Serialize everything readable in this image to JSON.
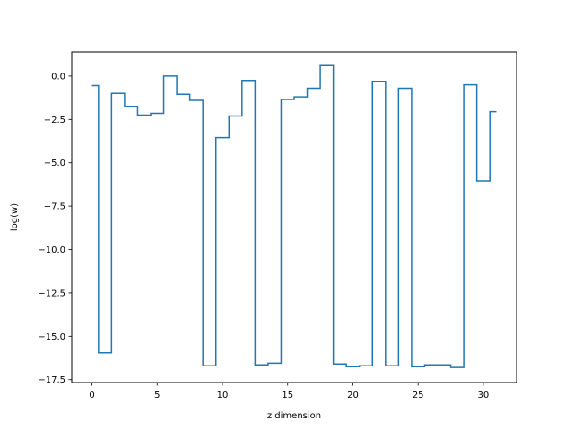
{
  "chart_data": {
    "type": "line",
    "drawstyle": "steps-mid",
    "title": "",
    "xlabel": "z dimension",
    "ylabel": "log(w)",
    "xlim": [
      -1.55,
      32.55
    ],
    "ylim": [
      -17.67,
      1.39
    ],
    "grid": false,
    "legend": "none",
    "x_ticks": [
      {
        "value": 0,
        "label": "0"
      },
      {
        "value": 5,
        "label": "5"
      },
      {
        "value": 10,
        "label": "10"
      },
      {
        "value": 15,
        "label": "15"
      },
      {
        "value": 20,
        "label": "20"
      },
      {
        "value": 25,
        "label": "25"
      },
      {
        "value": 30,
        "label": "30"
      }
    ],
    "y_ticks": [
      {
        "value": 0.0,
        "label": "0.0"
      },
      {
        "value": -2.5,
        "label": "−2.5"
      },
      {
        "value": -5.0,
        "label": "−5.0"
      },
      {
        "value": -7.5,
        "label": "−7.5"
      },
      {
        "value": -10.0,
        "label": "−10.0"
      },
      {
        "value": -12.5,
        "label": "−12.5"
      },
      {
        "value": -15.0,
        "label": "−15.0"
      },
      {
        "value": -17.5,
        "label": "−17.5"
      }
    ],
    "series": [
      {
        "color": "#1f77b4",
        "x": [
          0,
          1,
          2,
          3,
          4,
          5,
          6,
          7,
          8,
          9,
          10,
          11,
          12,
          13,
          14,
          15,
          16,
          17,
          18,
          19,
          20,
          21,
          22,
          23,
          24,
          25,
          26,
          27,
          28,
          29,
          30,
          31
        ],
        "y": [
          -0.55,
          -15.95,
          -1.0,
          -1.75,
          -2.25,
          -2.15,
          0.0,
          -1.05,
          -1.4,
          -16.7,
          -3.55,
          -2.3,
          -0.25,
          -16.65,
          -16.55,
          -1.35,
          -1.2,
          -0.7,
          0.6,
          -16.6,
          -16.75,
          -16.7,
          -0.3,
          -16.7,
          -0.7,
          -16.75,
          -16.65,
          -16.65,
          -16.8,
          -0.5,
          -6.05,
          -2.05
        ]
      }
    ]
  }
}
